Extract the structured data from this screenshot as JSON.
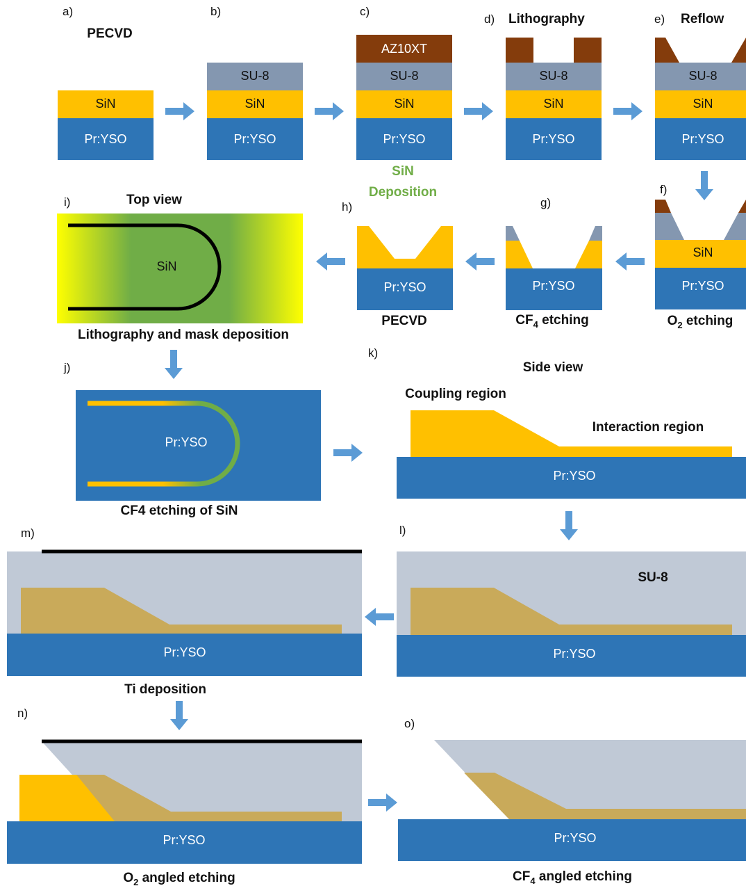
{
  "colors": {
    "substrate": "#2e75b6",
    "sin": "#ffc000",
    "su8": "#8497b0",
    "resist": "#843c0c",
    "arrow": "#5b9bd5",
    "sin_dep_text": "#70ad47",
    "su8_light": "#c0c9d6",
    "sin_under_su8": "#c9aa5a",
    "mask_line": "#000000",
    "top_view_center": "#70ad47",
    "top_view_edge": "#ffff00"
  },
  "labels": {
    "substrate": "Pr:YSO",
    "sin": "SiN",
    "su8": "SU-8",
    "resist": "AZ10XT"
  },
  "steps": {
    "a": {
      "letter": "a)",
      "caption": "PECVD"
    },
    "b": {
      "letter": "b)"
    },
    "c": {
      "letter": "c)",
      "caption_line1": "SiN",
      "caption_line2": "Deposition"
    },
    "d": {
      "letter": "d)",
      "caption": "Lithography"
    },
    "e": {
      "letter": "e)",
      "caption": "Reflow"
    },
    "f": {
      "letter": "f)",
      "caption_main": "O",
      "caption_sub": "2",
      "caption_rest": " etching"
    },
    "g": {
      "letter": "g)",
      "caption_main": "CF",
      "caption_sub": "4",
      "caption_rest": " etching"
    },
    "h": {
      "letter": "h)",
      "caption": "PECVD"
    },
    "i": {
      "letter": "i)",
      "title": "Top view",
      "inner_label": "SiN",
      "caption": "Lithography and mask deposition"
    },
    "j": {
      "letter": "j)",
      "caption": "CF4 etching of SiN"
    },
    "k": {
      "letter": "k)",
      "title": "Side view",
      "coupling": "Coupling region",
      "interaction": "Interaction region"
    },
    "l": {
      "letter": "l)",
      "su8_label": "SU-8"
    },
    "m": {
      "letter": "m)",
      "caption": "Ti deposition"
    },
    "n": {
      "letter": "n)",
      "caption_main": "O",
      "caption_sub": "2",
      "caption_rest": " angled etching"
    },
    "o": {
      "letter": "o)",
      "caption_main": "CF",
      "caption_sub": "4",
      "caption_rest": " angled etching"
    }
  }
}
